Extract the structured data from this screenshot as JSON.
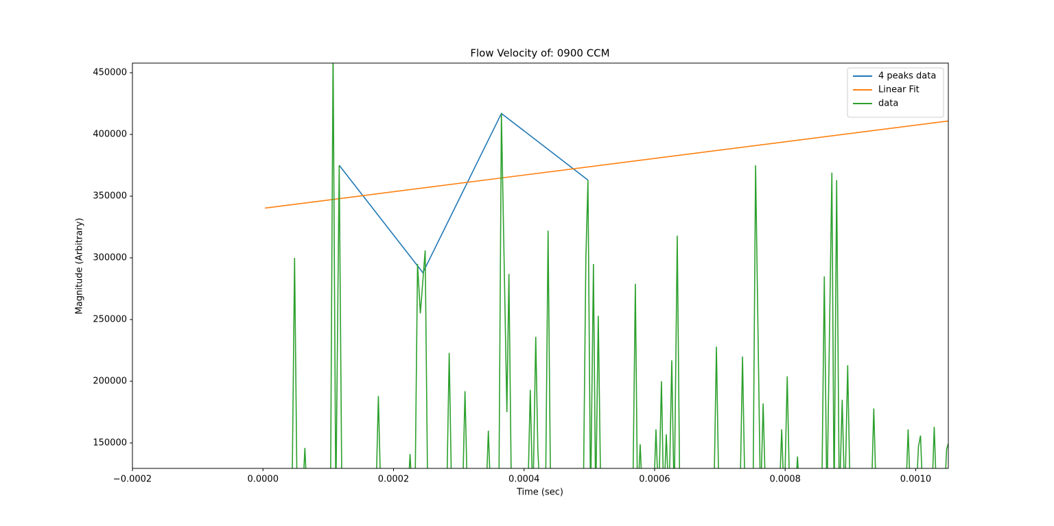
{
  "chart_data": {
    "type": "line",
    "title": "Flow Velocity of: 0900 CCM",
    "xlabel": "Time (sec)",
    "ylabel": "Magnitude (Arbitrary)",
    "xlim": [
      -0.0002,
      0.00105
    ],
    "ylim": [
      129400,
      457800
    ],
    "xticks": [
      {
        "value": -0.0002,
        "label": "−0.0002"
      },
      {
        "value": 0,
        "label": "0.0000"
      },
      {
        "value": 0.0002,
        "label": "0.0002"
      },
      {
        "value": 0.0004,
        "label": "0.0004"
      },
      {
        "value": 0.0006,
        "label": "0.0006"
      },
      {
        "value": 0.0008,
        "label": "0.0008"
      },
      {
        "value": 0.001,
        "label": "0.0010"
      }
    ],
    "yticks": [
      150000,
      200000,
      250000,
      300000,
      350000,
      400000,
      450000
    ],
    "legend": "upper right",
    "series": [
      {
        "name": "4 peaks data",
        "color": "#1f77b4",
        "x": [
          0.0001168,
          0.000245,
          0.0003653,
          0.0004979
        ],
        "values": [
          375000,
          288000,
          417000,
          363000
        ]
      },
      {
        "name": "Linear Fit",
        "color": "#ff7f0e",
        "x": [
          3e-06,
          0.0010516
        ],
        "values": [
          340300,
          411000
        ]
      },
      {
        "name": "data",
        "color": "#2ca02c",
        "x": [
          4.44e-05,
          4.84e-05,
          5.24e-05,
          6.02e-05,
          6.42e-05,
          6.82e-05,
          0.0001034,
          0.0001074,
          0.0001116,
          0.0001168,
          0.000121,
          0.0001728,
          0.0001768,
          0.0001808,
          0.0002213,
          0.0002253,
          0.0002293,
          0.0002328,
          0.0002368,
          0.0002411,
          0.0002485,
          0.0002525,
          0.0002813,
          0.0002853,
          0.0002893,
          0.0003055,
          0.0003095,
          0.0003135,
          0.0003413,
          0.0003453,
          0.0003493,
          0.0003613,
          0.0003653,
          0.0003737,
          0.0003768,
          0.0003808,
          0.0004055,
          0.0004095,
          0.0004135,
          0.0004179,
          0.0004211,
          0.000425,
          0.0004328,
          0.0004368,
          0.0004408,
          0.0004907,
          0.0004947,
          0.0004979,
          0.0005019,
          0.0005063,
          0.0005097,
          0.0005137,
          0.0005177,
          0.0005665,
          0.0005705,
          0.0005739,
          0.0005779,
          0.0005819,
          0.0005981,
          0.0006021,
          0.0006061,
          0.0006105,
          0.000614,
          0.0006179,
          0.000622,
          0.0006263,
          0.00063,
          0.0006347,
          0.0006387,
          0.0006907,
          0.0006947,
          0.0006987,
          0.0007307,
          0.0007347,
          0.0007387,
          0.0007507,
          0.0007547,
          0.0007623,
          0.0007663,
          0.0007703,
          0.0007907,
          0.0007947,
          0.0007987,
          0.0008032,
          0.0008072,
          0.0008149,
          0.0008189,
          0.0008229,
          0.000856,
          0.00086,
          0.000864,
          0.0008716,
          0.000875,
          0.0008789,
          0.000883,
          0.0008874,
          0.0008914,
          0.0008958,
          0.0008998,
          0.0009318,
          0.0009358,
          0.0009398,
          0.0009844,
          0.0009884,
          0.0009924,
          0.0010002,
          0.0010042,
          0.0010074,
          0.0010114,
          0.0010244,
          0.0010284,
          0.0010324,
          0.0010434,
          0.0010474,
          0.0010516
        ],
        "values": [
          100000,
          300000,
          100000,
          100000,
          146000,
          100000,
          100000,
          470000,
          100000,
          375000,
          100000,
          100000,
          188000,
          100000,
          100000,
          141000,
          100000,
          100000,
          295000,
          255000,
          306000,
          100000,
          100000,
          223000,
          100000,
          100000,
          192000,
          100000,
          100000,
          160000,
          100000,
          100000,
          417000,
          175000,
          287000,
          100000,
          100000,
          193000,
          100000,
          236000,
          145000,
          100000,
          100000,
          322000,
          100000,
          100000,
          300000,
          363000,
          100000,
          295000,
          100000,
          253000,
          100000,
          100000,
          279000,
          100000,
          149000,
          100000,
          100000,
          161000,
          100000,
          200000,
          100000,
          157000,
          100000,
          217000,
          100000,
          318000,
          100000,
          100000,
          228000,
          100000,
          100000,
          220000,
          100000,
          100000,
          375000,
          100000,
          182000,
          100000,
          100000,
          161000,
          100000,
          204000,
          100000,
          100000,
          139000,
          100000,
          100000,
          285000,
          100000,
          369000,
          100000,
          363000,
          100000,
          185000,
          100000,
          213000,
          100000,
          100000,
          178000,
          100000,
          100000,
          161000,
          100000,
          100000,
          147000,
          156000,
          100000,
          100000,
          163000,
          100000,
          100000,
          145000,
          152000
        ]
      }
    ]
  }
}
